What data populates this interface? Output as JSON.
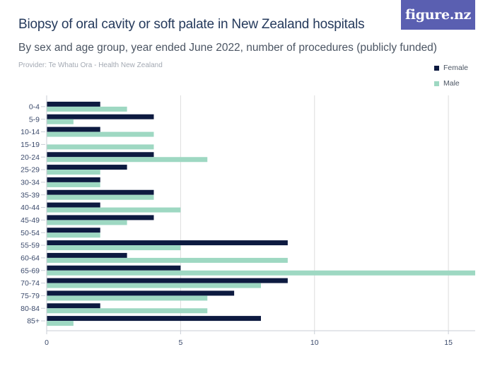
{
  "header": {
    "title": "Biopsy of oral cavity or soft palate in New Zealand hospitals",
    "subtitle": "By sex and age group, year ended June 2022, number of procedures (publicly funded)",
    "provider": "Provider: Te Whatu Ora - Health New Zealand",
    "logo_text": "figure.nz"
  },
  "colors": {
    "female": "#0d1a40",
    "male": "#9ed8c2",
    "grid": "#dddddd",
    "axis": "#c9ced6"
  },
  "chart_data": {
    "type": "bar",
    "orientation": "horizontal",
    "categories": [
      "0-4",
      "5-9",
      "10-14",
      "15-19",
      "20-24",
      "25-29",
      "30-34",
      "35-39",
      "40-44",
      "45-49",
      "50-54",
      "55-59",
      "60-64",
      "65-69",
      "70-74",
      "75-79",
      "80-84",
      "85+"
    ],
    "series": [
      {
        "name": "Female",
        "values": [
          2,
          4,
          2,
          0,
          4,
          3,
          2,
          4,
          2,
          4,
          2,
          9,
          3,
          5,
          9,
          7,
          2,
          8
        ]
      },
      {
        "name": "Male",
        "values": [
          3,
          1,
          4,
          4,
          6,
          2,
          2,
          4,
          5,
          3,
          2,
          5,
          9,
          16,
          8,
          6,
          6,
          1
        ]
      }
    ],
    "xlim": [
      0,
      16
    ],
    "xticks": [
      0,
      5,
      10,
      15
    ],
    "grid": true,
    "legend": "top-right"
  }
}
